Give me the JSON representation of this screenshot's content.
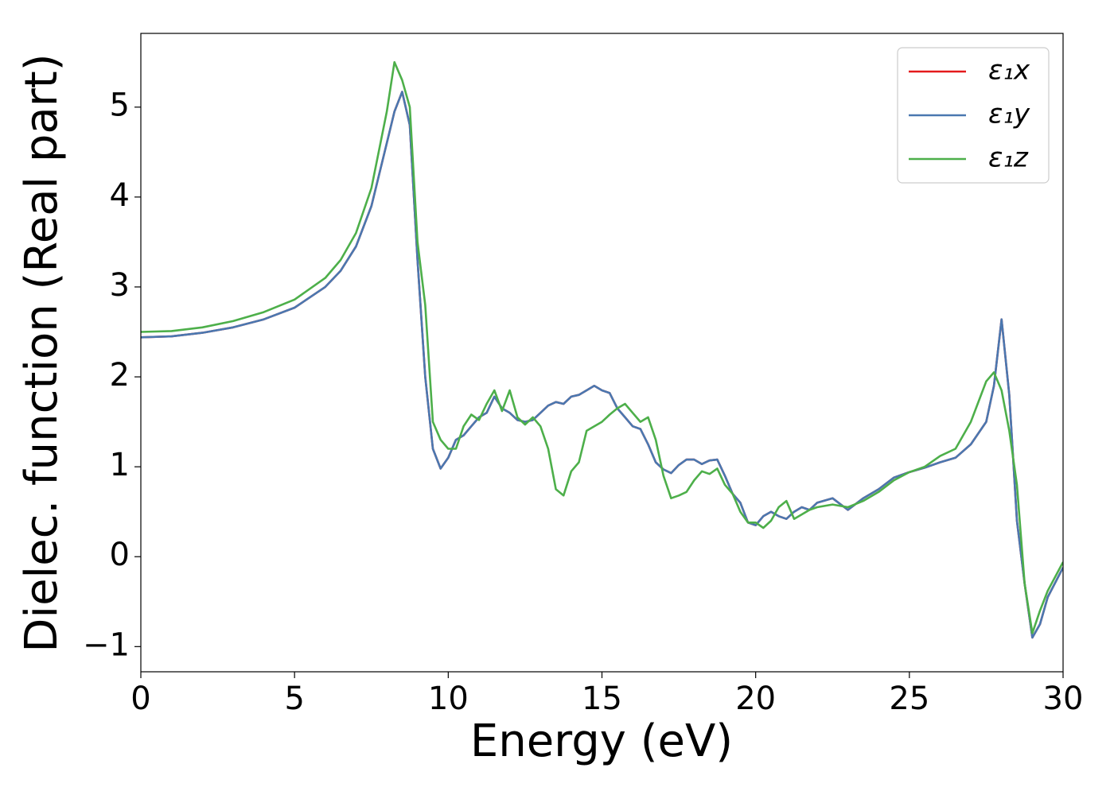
{
  "chart_data": {
    "type": "line",
    "xlabel": "Energy (eV)",
    "ylabel": "Dielec. function (Real part)",
    "x": [
      0,
      1,
      2,
      3,
      4,
      5,
      6,
      6.5,
      7,
      7.5,
      8,
      8.25,
      8.5,
      8.75,
      9,
      9.25,
      9.5,
      9.75,
      10,
      10.25,
      10.5,
      10.75,
      11,
      11.25,
      11.5,
      11.75,
      12,
      12.25,
      12.5,
      12.75,
      13,
      13.25,
      13.5,
      13.75,
      14,
      14.25,
      14.5,
      14.75,
      15,
      15.25,
      15.5,
      15.75,
      16,
      16.25,
      16.5,
      16.75,
      17,
      17.25,
      17.5,
      17.75,
      18,
      18.25,
      18.5,
      18.75,
      19,
      19.25,
      19.5,
      19.75,
      20,
      20.25,
      20.5,
      20.75,
      21,
      21.25,
      21.5,
      21.75,
      22,
      22.5,
      23,
      23.5,
      24,
      24.5,
      25,
      25.5,
      26,
      26.5,
      27,
      27.5,
      27.75,
      28,
      28.25,
      28.5,
      28.75,
      29,
      29.25,
      29.5,
      30
    ],
    "series": [
      {
        "name": "ε₁x",
        "color": "#e41a1c",
        "values": [
          2.44,
          2.45,
          2.49,
          2.55,
          2.64,
          2.77,
          3.0,
          3.18,
          3.45,
          3.9,
          4.6,
          4.95,
          5.17,
          4.8,
          3.3,
          2.0,
          1.2,
          0.98,
          1.1,
          1.3,
          1.35,
          1.45,
          1.55,
          1.6,
          1.78,
          1.65,
          1.6,
          1.52,
          1.5,
          1.52,
          1.6,
          1.68,
          1.72,
          1.7,
          1.78,
          1.8,
          1.85,
          1.9,
          1.85,
          1.82,
          1.65,
          1.55,
          1.45,
          1.42,
          1.25,
          1.05,
          0.97,
          0.93,
          1.02,
          1.08,
          1.08,
          1.03,
          1.07,
          1.08,
          0.9,
          0.7,
          0.6,
          0.38,
          0.35,
          0.45,
          0.5,
          0.45,
          0.42,
          0.5,
          0.55,
          0.52,
          0.6,
          0.65,
          0.52,
          0.65,
          0.75,
          0.88,
          0.94,
          0.99,
          1.05,
          1.1,
          1.25,
          1.5,
          1.9,
          2.64,
          1.8,
          0.4,
          -0.3,
          -0.9,
          -0.75,
          -0.45,
          -0.12
        ]
      },
      {
        "name": "ε₁y",
        "color": "#4a78b0",
        "values": [
          2.44,
          2.45,
          2.49,
          2.55,
          2.64,
          2.77,
          3.0,
          3.18,
          3.45,
          3.9,
          4.6,
          4.95,
          5.17,
          4.8,
          3.3,
          2.0,
          1.2,
          0.98,
          1.1,
          1.3,
          1.35,
          1.45,
          1.55,
          1.6,
          1.78,
          1.65,
          1.6,
          1.52,
          1.5,
          1.52,
          1.6,
          1.68,
          1.72,
          1.7,
          1.78,
          1.8,
          1.85,
          1.9,
          1.85,
          1.82,
          1.65,
          1.55,
          1.45,
          1.42,
          1.25,
          1.05,
          0.97,
          0.93,
          1.02,
          1.08,
          1.08,
          1.03,
          1.07,
          1.08,
          0.9,
          0.7,
          0.6,
          0.38,
          0.35,
          0.45,
          0.5,
          0.45,
          0.42,
          0.5,
          0.55,
          0.52,
          0.6,
          0.65,
          0.52,
          0.65,
          0.75,
          0.88,
          0.94,
          0.99,
          1.05,
          1.1,
          1.25,
          1.5,
          1.9,
          2.64,
          1.8,
          0.4,
          -0.3,
          -0.9,
          -0.75,
          -0.45,
          -0.12
        ]
      },
      {
        "name": "ε₁z",
        "color": "#4daf4a",
        "values": [
          2.5,
          2.51,
          2.55,
          2.62,
          2.72,
          2.86,
          3.1,
          3.3,
          3.6,
          4.1,
          4.95,
          5.5,
          5.3,
          5.0,
          3.5,
          2.8,
          1.5,
          1.3,
          1.2,
          1.2,
          1.45,
          1.58,
          1.52,
          1.7,
          1.85,
          1.62,
          1.85,
          1.55,
          1.47,
          1.55,
          1.45,
          1.2,
          0.75,
          0.68,
          0.95,
          1.05,
          1.4,
          1.45,
          1.5,
          1.58,
          1.65,
          1.7,
          1.6,
          1.5,
          1.55,
          1.3,
          0.9,
          0.65,
          0.68,
          0.72,
          0.85,
          0.95,
          0.92,
          0.98,
          0.8,
          0.7,
          0.5,
          0.38,
          0.38,
          0.32,
          0.4,
          0.55,
          0.62,
          0.42,
          0.47,
          0.52,
          0.55,
          0.58,
          0.55,
          0.62,
          0.72,
          0.85,
          0.94,
          1.0,
          1.12,
          1.2,
          1.5,
          1.95,
          2.05,
          1.85,
          1.4,
          0.8,
          -0.3,
          -0.85,
          -0.6,
          -0.38,
          -0.06
        ]
      }
    ],
    "xlim": [
      0,
      30
    ],
    "xticks": [
      0,
      5,
      10,
      15,
      20,
      25,
      30
    ],
    "ylim": [
      -1.28,
      5.82
    ],
    "yticks": [
      {
        "value": -1,
        "label": "−1"
      },
      0,
      1,
      2,
      3,
      4,
      5
    ],
    "grid": false,
    "legend": "upper right"
  }
}
